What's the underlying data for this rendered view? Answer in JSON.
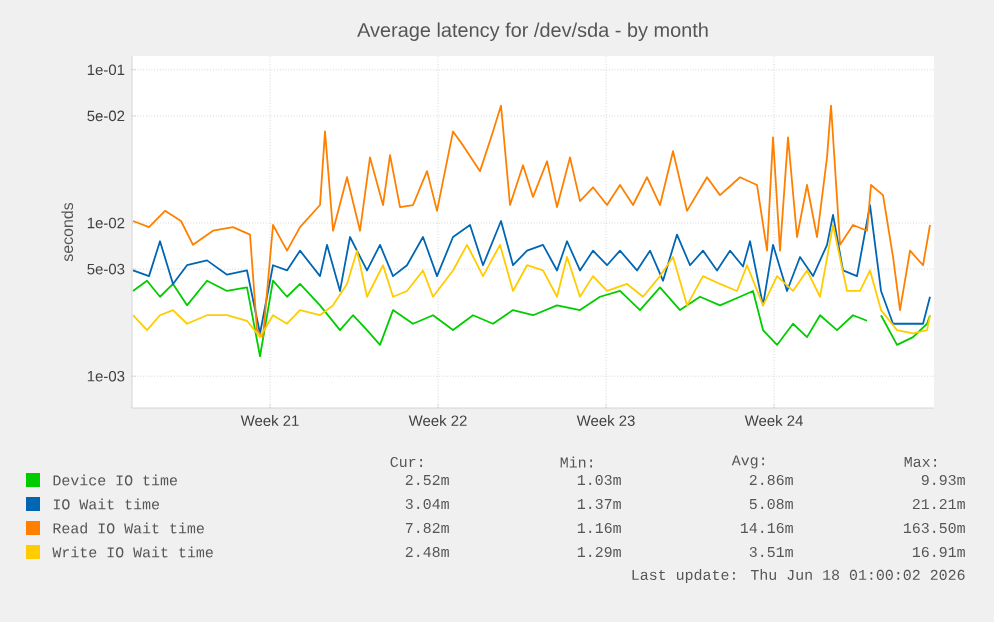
{
  "chart_data": {
    "type": "line",
    "title": "Average latency for /dev/sda - by month",
    "ylabel": "seconds",
    "log": "y",
    "grid": true,
    "legend": "bottom",
    "line_style": "solid",
    "marker": "none",
    "xlim": [
      "2026-05-15T18:00",
      "2026-06-18T04:00"
    ],
    "ylim": [
      0.00062,
      0.123
    ],
    "xticks": [
      {
        "value": "2026-05-21T12:00",
        "label": "Week 21"
      },
      {
        "value": "2026-05-28T12:00",
        "label": "Week 22"
      },
      {
        "value": "2026-06-04T12:00",
        "label": "Week 23"
      },
      {
        "value": "2026-06-11T12:00",
        "label": "Week 24"
      }
    ],
    "yticks": [
      {
        "value": 0.001,
        "label": "1e-03"
      },
      {
        "value": 0.005,
        "label": "5e-03"
      },
      {
        "value": 0.01,
        "label": "1e-02"
      },
      {
        "value": 0.05,
        "label": "5e-02"
      },
      {
        "value": 0.1,
        "label": "1e-01"
      }
    ],
    "series": [
      {
        "name": "Device IO time",
        "color": "#00cc00",
        "x": [
          "2026-05-15T19:00",
          "2026-05-16T09:00",
          "2026-05-16T22:00",
          "2026-05-17T11:00",
          "2026-05-18T01:00",
          "2026-05-18T21:00",
          "2026-05-19T17:00",
          "2026-05-20T13:00",
          "2026-05-21T02:00",
          "2026-05-21T15:00",
          "2026-05-22T05:00",
          "2026-05-22T18:00",
          "2026-05-23T14:00",
          "2026-05-24T10:00",
          "2026-05-24T23:00",
          "2026-05-25T13:00",
          "2026-05-26T02:00",
          "2026-05-26T15:00",
          "2026-05-27T11:00",
          "2026-05-28T07:00",
          "2026-05-29T03:00",
          "2026-05-29T23:00",
          "2026-05-30T19:00",
          "2026-05-31T15:00",
          "2026-06-01T11:00",
          "2026-06-02T11:00",
          "2026-06-03T10:00",
          "2026-06-04T06:00",
          "2026-06-05T02:00",
          "2026-06-05T22:00",
          "2026-06-06T18:00",
          "2026-06-07T14:00",
          "2026-06-08T10:00",
          "2026-06-09T06:00",
          "2026-06-10T02:00",
          "2026-06-10T15:00",
          "2026-06-11T01:00",
          "2026-06-11T15:00",
          "2026-06-12T07:00",
          "2026-06-12T21:00",
          "2026-06-13T10:00",
          "2026-06-14T03:00",
          "2026-06-14T19:00",
          "2026-06-15T09:00",
          "2026-06-15T16:00",
          "2026-06-15T23:00",
          "2026-06-16T15:00",
          "2026-06-17T07:00",
          "2026-06-17T21:00",
          "2026-06-18T00:00"
        ],
        "values": [
          0.0036,
          0.0042,
          0.0033,
          0.004,
          0.0029,
          0.0042,
          0.0036,
          0.0038,
          0.00135,
          0.0042,
          0.0033,
          0.004,
          0.0029,
          0.002,
          0.0025,
          0.002,
          0.0016,
          0.0027,
          0.0022,
          0.0025,
          0.002,
          0.0025,
          0.0022,
          0.0027,
          0.0025,
          0.0029,
          0.0027,
          0.0033,
          0.0036,
          0.0027,
          0.0038,
          0.0027,
          0.0033,
          0.0029,
          0.0033,
          0.0036,
          0.002,
          0.0016,
          0.0022,
          0.0018,
          0.0025,
          0.002,
          0.0025,
          0.0023,
          null,
          0.0025,
          0.0016,
          0.0018,
          0.0022,
          0.0025
        ]
      },
      {
        "name": "IO Wait time",
        "color": "#0066b3",
        "x": [
          "2026-05-15T19:00",
          "2026-05-16T11:00",
          "2026-05-16T22:00",
          "2026-05-17T11:00",
          "2026-05-18T01:00",
          "2026-05-18T21:00",
          "2026-05-19T17:00",
          "2026-05-20T13:00",
          "2026-05-21T02:00",
          "2026-05-21T15:00",
          "2026-05-22T05:00",
          "2026-05-22T18:00",
          "2026-05-23T14:00",
          "2026-05-23T21:00",
          "2026-05-24T10:00",
          "2026-05-24T20:00",
          "2026-05-25T13:00",
          "2026-05-26T02:00",
          "2026-05-26T15:00",
          "2026-05-27T05:00",
          "2026-05-27T21:00",
          "2026-05-28T11:00",
          "2026-05-29T03:00",
          "2026-05-29T20:00",
          "2026-05-30T09:00",
          "2026-05-31T03:00",
          "2026-05-31T15:00",
          "2026-06-01T05:00",
          "2026-06-01T21:00",
          "2026-06-02T11:00",
          "2026-06-02T21:00",
          "2026-06-03T10:00",
          "2026-06-03T23:00",
          "2026-06-04T13:00",
          "2026-06-05T02:00",
          "2026-06-05T19:00",
          "2026-06-06T08:00",
          "2026-06-06T21:00",
          "2026-06-07T11:00",
          "2026-06-08T00:00",
          "2026-06-08T13:00",
          "2026-06-09T03:00",
          "2026-06-09T16:00",
          "2026-06-10T05:00",
          "2026-06-10T12:00",
          "2026-06-11T01:00",
          "2026-06-11T11:00",
          "2026-06-12T01:00",
          "2026-06-12T14:00",
          "2026-06-13T03:00",
          "2026-06-13T17:00",
          "2026-06-13T23:00",
          "2026-06-14T09:00",
          "2026-06-14T23:00",
          "2026-06-15T12:00",
          "2026-06-15T23:00",
          "2026-06-16T11:00",
          "2026-06-17T01:00",
          "2026-06-17T17:00",
          "2026-06-18T00:00"
        ],
        "values": [
          0.0049,
          0.0045,
          0.0076,
          0.004,
          0.0053,
          0.0057,
          0.0046,
          0.0049,
          0.0019,
          0.0053,
          0.0049,
          0.0066,
          0.0045,
          0.0072,
          0.0036,
          0.0081,
          0.0049,
          0.0072,
          0.0045,
          0.0053,
          0.0081,
          0.0045,
          0.0081,
          0.0097,
          0.0053,
          0.0103,
          0.0053,
          0.0066,
          0.0072,
          0.0049,
          0.0076,
          0.0049,
          0.0066,
          0.0053,
          0.0066,
          0.0049,
          0.0066,
          0.0042,
          0.0084,
          0.0053,
          0.0066,
          0.0049,
          0.0066,
          0.0052,
          0.0076,
          0.0029,
          0.0072,
          0.0036,
          0.006,
          0.0045,
          0.0072,
          0.0113,
          0.0049,
          0.0045,
          0.0131,
          0.0036,
          0.0022,
          0.0022,
          0.0022,
          0.0033
        ]
      },
      {
        "name": "Read IO Wait time",
        "color": "#ff8000",
        "x": [
          "2026-05-15T19:00",
          "2026-05-16T11:00",
          "2026-05-17T03:00",
          "2026-05-17T19:00",
          "2026-05-18T07:00",
          "2026-05-19T03:00",
          "2026-05-19T23:00",
          "2026-05-20T16:00",
          "2026-05-20T23:00",
          "2026-05-21T05:00",
          "2026-05-21T15:00",
          "2026-05-22T05:00",
          "2026-05-22T18:00",
          "2026-05-23T14:00",
          "2026-05-23T19:00",
          "2026-05-24T03:00",
          "2026-05-24T17:00",
          "2026-05-25T06:00",
          "2026-05-25T16:00",
          "2026-05-26T05:00",
          "2026-05-26T12:00",
          "2026-05-26T22:00",
          "2026-05-27T11:00",
          "2026-05-28T01:00",
          "2026-05-28T11:00",
          "2026-05-29T03:00",
          "2026-05-29T13:00",
          "2026-05-30T06:00",
          "2026-05-30T19:00",
          "2026-05-31T03:00",
          "2026-05-31T12:00",
          "2026-06-01T01:00",
          "2026-06-01T11:00",
          "2026-06-02T01:00",
          "2026-06-02T11:00",
          "2026-06-03T00:00",
          "2026-06-03T10:00",
          "2026-06-03T23:00",
          "2026-06-04T13:00",
          "2026-06-05T02:00",
          "2026-06-05T15:00",
          "2026-06-06T05:00",
          "2026-06-06T18:00",
          "2026-06-07T07:00",
          "2026-06-07T21:00",
          "2026-06-08T17:00",
          "2026-06-09T06:00",
          "2026-06-10T02:00",
          "2026-06-10T19:00",
          "2026-06-11T05:00",
          "2026-06-11T11:00",
          "2026-06-11T18:00",
          "2026-06-12T02:00",
          "2026-06-12T11:00",
          "2026-06-12T21:00",
          "2026-06-13T07:00",
          "2026-06-13T17:00",
          "2026-06-13T21:00",
          "2026-06-14T06:00",
          "2026-06-14T19:00",
          "2026-06-15T09:00",
          "2026-06-15T13:00",
          "2026-06-16T01:00",
          "2026-06-16T11:00",
          "2026-06-16T18:00",
          "2026-06-17T04:00",
          "2026-06-17T17:00",
          "2026-06-18T00:00"
        ],
        "values": [
          0.0103,
          0.0094,
          0.012,
          0.0103,
          0.0072,
          0.0089,
          0.0094,
          0.0084,
          0.002,
          0.0018,
          0.0097,
          0.0066,
          0.0094,
          0.0131,
          0.0396,
          0.0089,
          0.0199,
          0.0089,
          0.0268,
          0.0131,
          0.0277,
          0.0127,
          0.0131,
          0.0218,
          0.012,
          0.0396,
          0.0321,
          0.0218,
          0.0396,
          0.0584,
          0.0131,
          0.0238,
          0.0148,
          0.0253,
          0.0127,
          0.0268,
          0.0139,
          0.0171,
          0.0131,
          0.0177,
          0.0131,
          0.0199,
          0.0131,
          0.0294,
          0.012,
          0.0199,
          0.0152,
          0.0199,
          0.0177,
          0.0066,
          0.0362,
          0.0066,
          0.0362,
          0.0081,
          0.0177,
          0.0081,
          0.0268,
          0.0584,
          0.0072,
          0.0097,
          0.0089,
          0.0177,
          0.0152,
          0.006,
          0.0027,
          0.0066,
          0.0053,
          0.0097
        ]
      },
      {
        "name": "Write IO Wait time",
        "color": "#ffcc00",
        "x": [
          "2026-05-15T19:00",
          "2026-05-16T09:00",
          "2026-05-16T22:00",
          "2026-05-17T11:00",
          "2026-05-18T01:00",
          "2026-05-18T21:00",
          "2026-05-19T17:00",
          "2026-05-20T13:00",
          "2026-05-21T02:00",
          "2026-05-21T15:00",
          "2026-05-22T05:00",
          "2026-05-22T18:00",
          "2026-05-23T14:00",
          "2026-05-24T03:00",
          "2026-05-24T17:00",
          "2026-05-25T03:00",
          "2026-05-25T13:00",
          "2026-05-26T05:00",
          "2026-05-26T15:00",
          "2026-05-27T05:00",
          "2026-05-27T21:00",
          "2026-05-28T07:00",
          "2026-05-29T03:00",
          "2026-05-29T17:00",
          "2026-05-30T09:00",
          "2026-05-31T02:00",
          "2026-05-31T15:00",
          "2026-06-01T05:00",
          "2026-06-01T21:00",
          "2026-06-02T11:00",
          "2026-06-02T21:00",
          "2026-06-03T10:00",
          "2026-06-03T23:00",
          "2026-06-04T13:00",
          "2026-06-05T09:00",
          "2026-06-06T01:00",
          "2026-06-06T18:00",
          "2026-06-07T07:00",
          "2026-06-07T21:00",
          "2026-06-08T13:00",
          "2026-06-09T06:00",
          "2026-06-09T23:00",
          "2026-06-10T09:00",
          "2026-06-11T01:00",
          "2026-06-11T15:00",
          "2026-06-12T07:00",
          "2026-06-12T21:00",
          "2026-06-13T10:00",
          "2026-06-13T23:00",
          "2026-06-14T13:00",
          "2026-06-15T02:00",
          "2026-06-15T12:00",
          "2026-06-15T23:00",
          "2026-06-16T15:00",
          "2026-06-17T07:00",
          "2026-06-17T21:00",
          "2026-06-18T00:00"
        ],
        "values": [
          0.0025,
          0.002,
          0.0025,
          0.0027,
          0.0022,
          0.0025,
          0.0025,
          0.0023,
          0.0018,
          0.0025,
          0.0022,
          0.0027,
          0.0025,
          0.0029,
          0.004,
          0.0066,
          0.0033,
          0.0053,
          0.0033,
          0.0036,
          0.0049,
          0.0033,
          0.0049,
          0.0072,
          0.0045,
          0.0072,
          0.0036,
          0.0053,
          0.0049,
          0.0033,
          0.006,
          0.0033,
          0.0045,
          0.0036,
          0.004,
          0.0033,
          0.0045,
          0.006,
          0.0029,
          0.0045,
          0.004,
          0.0036,
          0.0053,
          0.0029,
          0.0045,
          0.0036,
          0.0049,
          0.0033,
          0.0097,
          0.0036,
          0.0036,
          0.0049,
          0.0027,
          0.002,
          0.0019,
          0.002,
          0.0025
        ]
      }
    ],
    "annotations": [
      "Cur:",
      "Min:",
      "Avg:",
      "Max:",
      "2.52m",
      "1.03m",
      "2.86m",
      "9.93m",
      "3.04m",
      "1.37m",
      "5.08m",
      "21.21m",
      "7.82m",
      "1.16m",
      "14.16m",
      "163.50m",
      "2.48m",
      "1.29m",
      "3.51m",
      "16.91m",
      "Last update: Thu Jun 18 01:00:02 2026"
    ]
  }
}
